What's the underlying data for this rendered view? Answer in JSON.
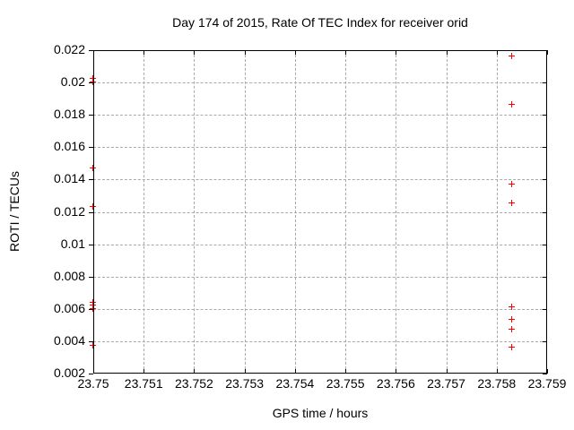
{
  "chart_data": {
    "type": "scatter",
    "title": "Day 174 of 2015, Rate Of TEC Index for receiver orid",
    "xlabel": "GPS time / hours",
    "ylabel": "ROTI / TECUs",
    "xlim": [
      23.75,
      23.759
    ],
    "ylim": [
      0.002,
      0.022
    ],
    "grid": true,
    "legend": "none",
    "x_ticks": [
      23.75,
      23.751,
      23.752,
      23.753,
      23.754,
      23.755,
      23.756,
      23.757,
      23.758,
      23.759
    ],
    "x_tick_labels": [
      "23.75",
      "23.751",
      "23.752",
      "23.753",
      "23.754",
      "23.755",
      "23.756",
      "23.757",
      "23.758",
      "23.759"
    ],
    "y_ticks": [
      0.002,
      0.004,
      0.006,
      0.008,
      0.01,
      0.012,
      0.014,
      0.016,
      0.018,
      0.02,
      0.022
    ],
    "y_tick_labels": [
      "0.002",
      "0.004",
      "0.006",
      "0.008",
      "0.01",
      "0.012",
      "0.014",
      "0.016",
      "0.018",
      "0.02",
      "0.022"
    ],
    "marker": "plus",
    "marker_color": "#ff0000",
    "series": [
      {
        "name": "ROTI",
        "points": [
          [
            23.75,
            0.0202
          ],
          [
            23.75,
            0.02
          ],
          [
            23.75,
            0.0147
          ],
          [
            23.75,
            0.0123
          ],
          [
            23.75,
            0.0064
          ],
          [
            23.75,
            0.0062
          ],
          [
            23.75,
            0.006
          ],
          [
            23.75,
            0.0037
          ],
          [
            23.7583,
            0.0216
          ],
          [
            23.7583,
            0.0186
          ],
          [
            23.7583,
            0.0137
          ],
          [
            23.7583,
            0.0125
          ],
          [
            23.7583,
            0.0061
          ],
          [
            23.7583,
            0.0053
          ],
          [
            23.7583,
            0.0047
          ],
          [
            23.7583,
            0.0036
          ]
        ]
      }
    ]
  },
  "colors": {
    "background": "#ffffff",
    "border": "#000000",
    "grid": "#a9a9a9",
    "marker": "#ff0000",
    "text": "#000000"
  }
}
